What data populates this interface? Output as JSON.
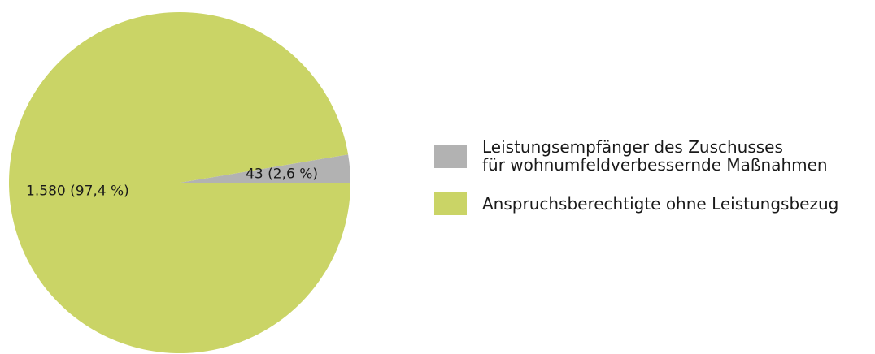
{
  "chart_data": {
    "type": "pie",
    "categories": [
      "Leistungsempfänger des Zuschusses\nfür wohnumfeldverbessernde Maßnahmen",
      "Anspruchsberechtigte ohne Leistungsbezug"
    ],
    "values": [
      43,
      1580
    ],
    "value_labels": [
      "43 (2,6 %)",
      "1.580 (97,4 %)"
    ],
    "colors": [
      "#b2b2b2",
      "#cad466"
    ],
    "legend": "right"
  }
}
